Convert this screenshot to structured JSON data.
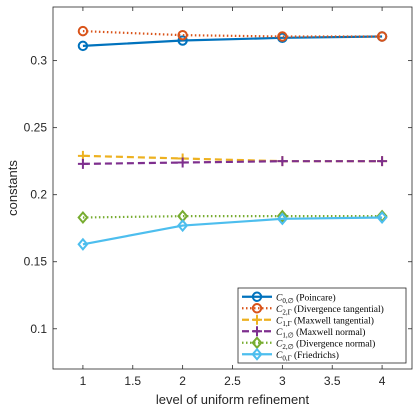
{
  "chart_data": {
    "type": "line",
    "xlabel": "level of uniform refinement",
    "ylabel": "constants",
    "xlim": [
      0.7,
      4.3
    ],
    "ylim": [
      0.07,
      0.34
    ],
    "xticks": [
      1,
      1.5,
      2,
      2.5,
      3,
      3.5,
      4
    ],
    "xtick_labels": [
      "1",
      "1.5",
      "2",
      "2.5",
      "3",
      "3.5",
      "4"
    ],
    "yticks": [
      0.1,
      0.15,
      0.2,
      0.25,
      0.3
    ],
    "ytick_labels": [
      "0.1",
      "0.15",
      "0.2",
      "0.25",
      "0.3"
    ],
    "grid": false,
    "legend_position": "bottom-right",
    "x": [
      1,
      2,
      3,
      4
    ],
    "series": [
      {
        "name": "C_{0,∅} (Poincare)",
        "sym": "C",
        "sub": "0,∅",
        "desc": "(Poincare)",
        "values": [
          0.311,
          0.315,
          0.317,
          0.318
        ],
        "color": "#0072BD",
        "dash": "solid",
        "marker": "circle"
      },
      {
        "name": "C_{2,Γ} (Divergence tangential)",
        "sym": "C",
        "sub": "2,Γ",
        "desc": "(Divergence tangential)",
        "values": [
          0.322,
          0.319,
          0.318,
          0.318
        ],
        "color": "#D95319",
        "dash": "dotted",
        "marker": "circle"
      },
      {
        "name": "C_{1,Γ} (Maxwell tangential)",
        "sym": "C",
        "sub": "1,Γ",
        "desc": "(Maxwell tangential)",
        "values": [
          0.229,
          0.227,
          0.225,
          0.225
        ],
        "color": "#EDB120",
        "dash": "dashed",
        "marker": "plus"
      },
      {
        "name": "C_{1,∅} (Maxwell normal)",
        "sym": "C",
        "sub": "1,∅",
        "desc": "(Maxwell normal)",
        "values": [
          0.223,
          0.224,
          0.225,
          0.225
        ],
        "color": "#7E2F8E",
        "dash": "dashed",
        "marker": "plus"
      },
      {
        "name": "C_{2,∅} (Divergence normal)",
        "sym": "C",
        "sub": "2,∅",
        "desc": "(Divergence normal)",
        "values": [
          0.183,
          0.184,
          0.184,
          0.184
        ],
        "color": "#77AC30",
        "dash": "dotted",
        "marker": "diamond"
      },
      {
        "name": "C_{0,Γ} (Friedrichs)",
        "sym": "C",
        "sub": "0,Γ",
        "desc": "(Friedrichs)",
        "values": [
          0.163,
          0.177,
          0.182,
          0.183
        ],
        "color": "#4DBEEE",
        "dash": "solid",
        "marker": "diamond"
      }
    ]
  }
}
